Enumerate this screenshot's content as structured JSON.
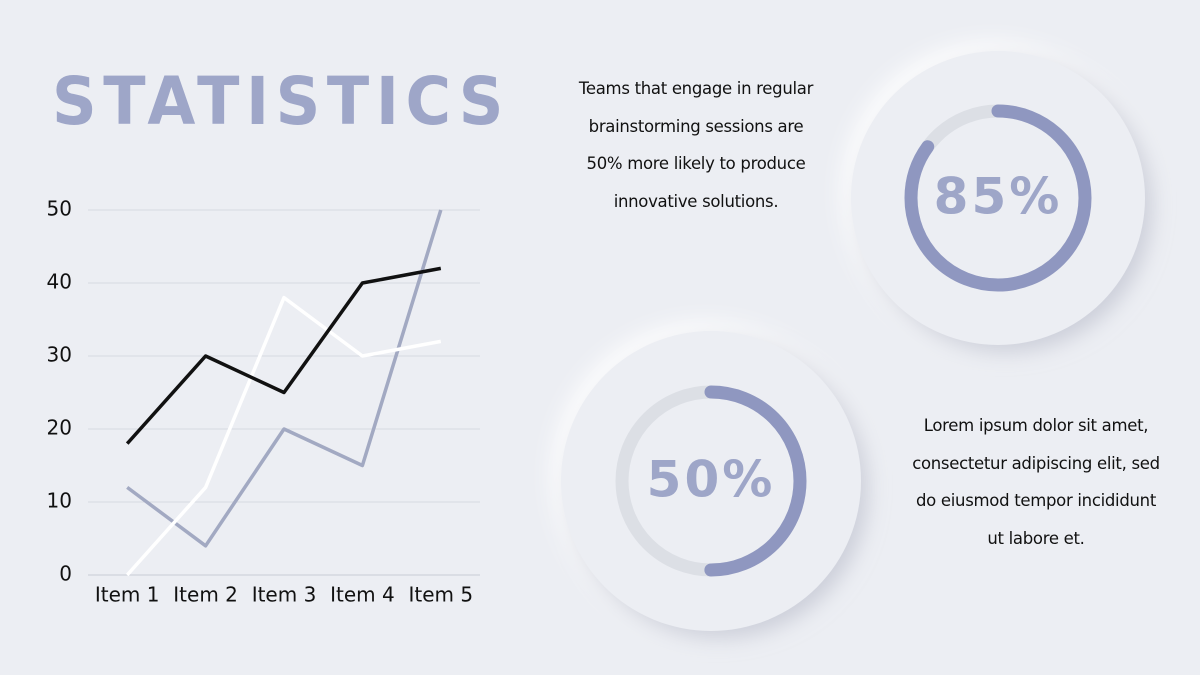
{
  "title": "STATISTICS",
  "texts": [
    "Teams that engage in regular brainstorming sessions are 50% more likely to produce innovative solutions.",
    "Lorem ipsum dolor sit amet, consectetur adipiscing elit, sed do eiusmod tempor incididunt ut labore et."
  ],
  "chart_data": [
    {
      "type": "line",
      "categories": [
        "Item 1",
        "Item 2",
        "Item 3",
        "Item 4",
        "Item 5"
      ],
      "series": [
        {
          "color": "#a2a9c2",
          "values": [
            12,
            4,
            20,
            15,
            50
          ]
        },
        {
          "color": "#ffffff",
          "values": [
            0,
            12,
            38,
            30,
            32
          ]
        },
        {
          "color": "#111111",
          "values": [
            18,
            30,
            25,
            40,
            42
          ]
        }
      ],
      "ylim": [
        0,
        50
      ],
      "yticks": [
        0,
        10,
        20,
        30,
        40,
        50
      ],
      "grid": true
    },
    {
      "type": "donut",
      "values": [
        85
      ],
      "value_labels": [
        "85%"
      ],
      "ylim": [
        0,
        100
      ],
      "color": "#8f97c0"
    },
    {
      "type": "donut",
      "values": [
        50
      ],
      "value_labels": [
        "50%"
      ],
      "ylim": [
        0,
        100
      ],
      "color": "#8f97c0"
    }
  ]
}
